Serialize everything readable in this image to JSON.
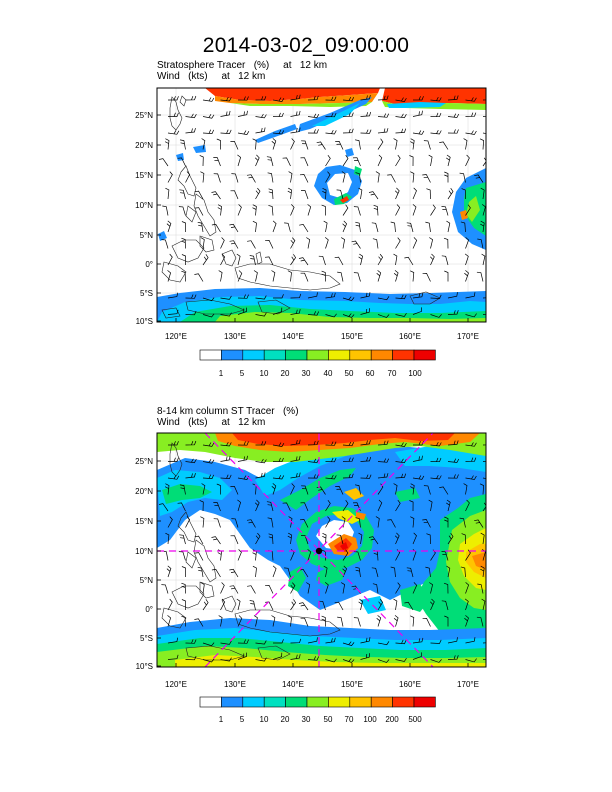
{
  "title": "2014-03-02_09:00:00",
  "panel1": {
    "subtitle1": "Stratosphere Tracer   (%)     at   12 km",
    "subtitle2": "Wind   (kts)     at   12 km",
    "lat_labels": [
      "25°N",
      "20°N",
      "15°N",
      "10°N",
      "5°N",
      "0°",
      "5°S",
      "10°S"
    ],
    "lon_labels": [
      "120°E",
      "130°E",
      "140°E",
      "150°E",
      "160°E",
      "170°E"
    ],
    "colorbar_labels": [
      "1",
      "5",
      "10",
      "20",
      "30",
      "40",
      "50",
      "60",
      "70",
      "100"
    ]
  },
  "panel2": {
    "subtitle1": "8-14 km column ST Tracer   (%)",
    "subtitle2": "Wind   (kts)     at   12 km",
    "lat_labels": [
      "25°N",
      "20°N",
      "15°N",
      "10°N",
      "5°N",
      "0°",
      "5°S",
      "10°S"
    ],
    "lon_labels": [
      "120°E",
      "130°E",
      "140°E",
      "150°E",
      "160°E",
      "170°E"
    ],
    "colorbar_labels": [
      "1",
      "5",
      "10",
      "20",
      "30",
      "50",
      "70",
      "100",
      "200",
      "500"
    ]
  },
  "colors": {
    "scale": [
      "#ffffff",
      "#1e90ff",
      "#00ccff",
      "#00e0c0",
      "#00dd77",
      "#88ee22",
      "#eeee00",
      "#ffc400",
      "#ff8800",
      "#ff3300",
      "#ee0000"
    ],
    "crosshair": "#ee00ee"
  }
}
